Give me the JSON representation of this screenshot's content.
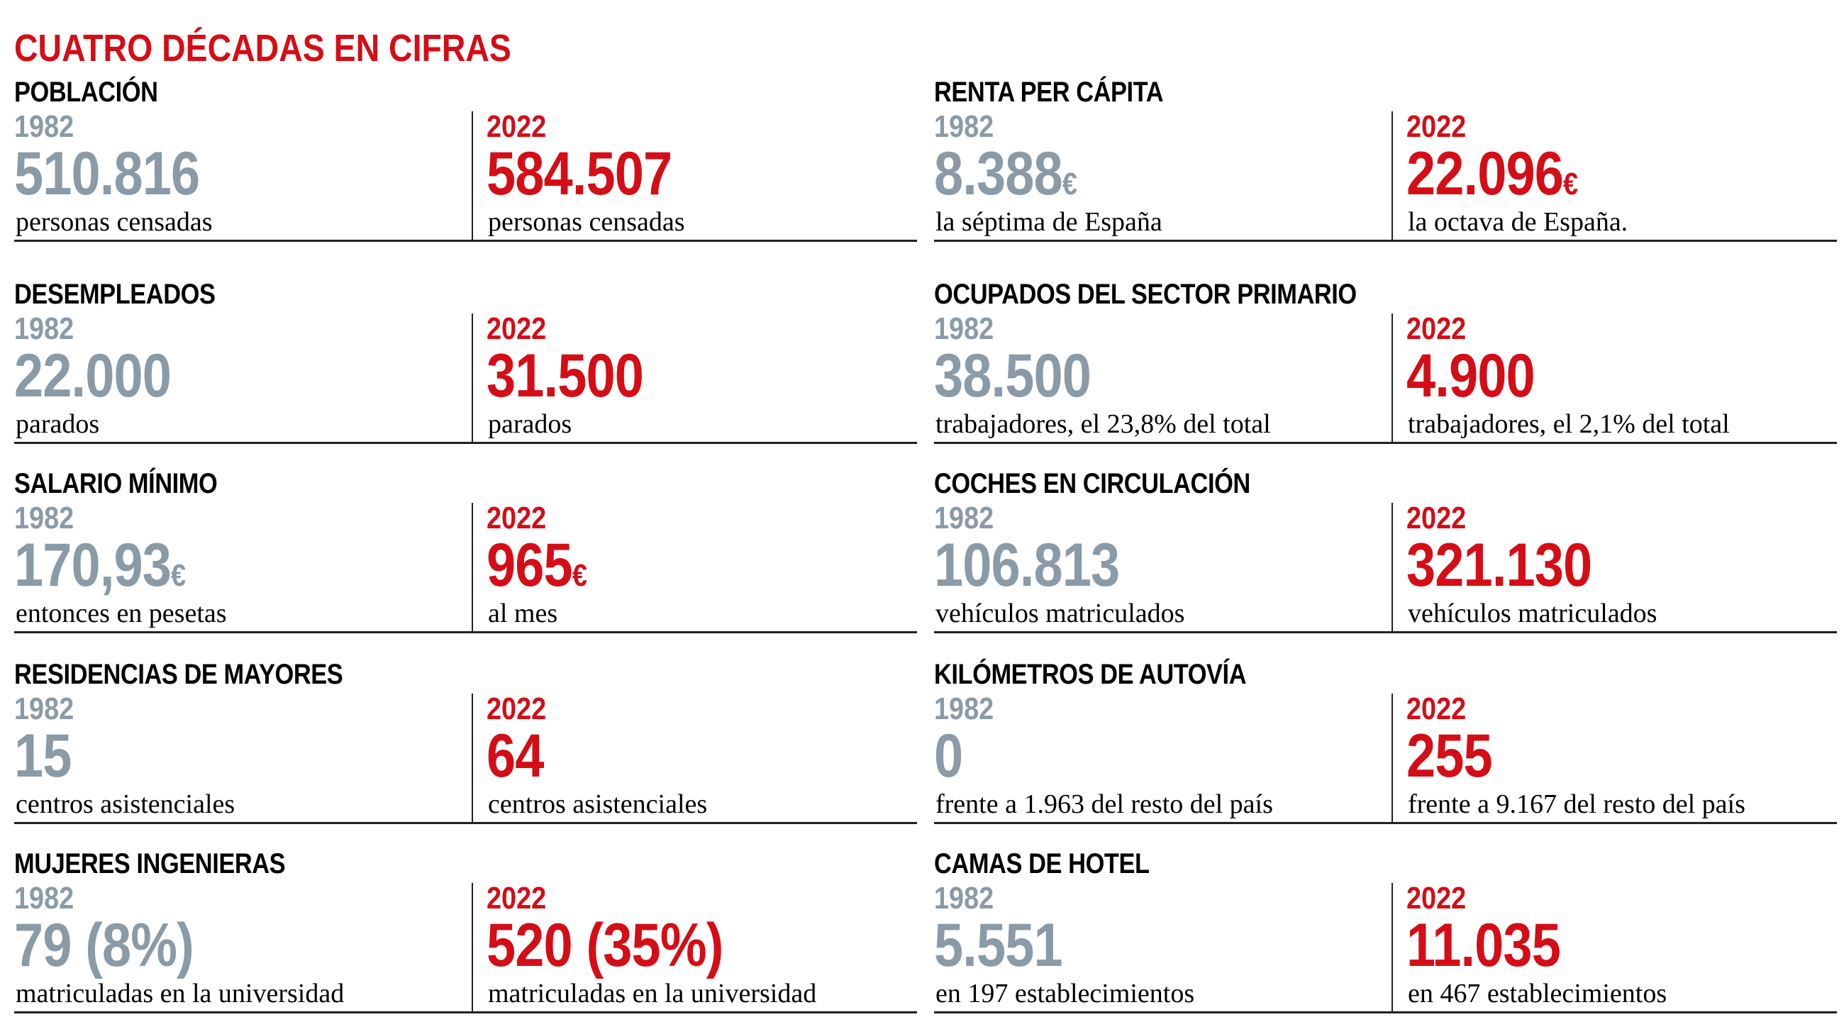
{
  "title": "CUATRO DÉCADAS EN CIFRAS",
  "colors": {
    "accent": "#d40d17",
    "past": "#8a9aa7"
  },
  "sections": [
    {
      "title": "POBLACIÓN",
      "before": {
        "year": "1982",
        "value": "510.816",
        "unit": "",
        "desc": "personas censadas"
      },
      "after": {
        "year": "2022",
        "value": "584.507",
        "unit": "",
        "desc": "personas censadas"
      }
    },
    {
      "title": "DESEMPLEADOS",
      "before": {
        "year": "1982",
        "value": "22.000",
        "unit": "",
        "desc": "parados"
      },
      "after": {
        "year": "2022",
        "value": "31.500",
        "unit": "",
        "desc": "parados"
      }
    },
    {
      "title": "SALARIO MÍNIMO",
      "before": {
        "year": "1982",
        "value": "170,93",
        "unit": "€",
        "desc": "entonces en pesetas"
      },
      "after": {
        "year": "2022",
        "value": "965",
        "unit": "€",
        "desc": "al mes"
      }
    },
    {
      "title": "RESIDENCIAS DE MAYORES",
      "before": {
        "year": "1982",
        "value": "15",
        "unit": "",
        "desc": "centros asistenciales"
      },
      "after": {
        "year": "2022",
        "value": "64",
        "unit": "",
        "desc": "centros asistenciales"
      }
    },
    {
      "title": "MUJERES INGENIERAS",
      "before": {
        "year": "1982",
        "value": "79 (8%)",
        "unit": "",
        "desc": "matriculadas en la universidad"
      },
      "after": {
        "year": "2022",
        "value": "520 (35%)",
        "unit": "",
        "desc": "matriculadas en la universidad"
      }
    },
    {
      "title": "RENTA PER CÁPITA",
      "before": {
        "year": "1982",
        "value": "8.388",
        "unit": "€",
        "desc": "la séptima de España"
      },
      "after": {
        "year": "2022",
        "value": "22.096",
        "unit": "€",
        "desc": "la octava de España."
      }
    },
    {
      "title": "OCUPADOS DEL SECTOR PRIMARIO",
      "before": {
        "year": "1982",
        "value": "38.500",
        "unit": "",
        "desc": "trabajadores, el 23,8% del total"
      },
      "after": {
        "year": "2022",
        "value": "4.900",
        "unit": "",
        "desc": "trabajadores, el 2,1% del total"
      }
    },
    {
      "title": "COCHES EN CIRCULACIÓN",
      "before": {
        "year": "1982",
        "value": "106.813",
        "unit": "",
        "desc": "vehículos matriculados"
      },
      "after": {
        "year": "2022",
        "value": "321.130",
        "unit": "",
        "desc": "vehículos matriculados"
      }
    },
    {
      "title": "KILÓMETROS DE AUTOVÍA",
      "before": {
        "year": "1982",
        "value": "0",
        "unit": "",
        "desc": "frente a 1.963 del resto del país"
      },
      "after": {
        "year": "2022",
        "value": "255",
        "unit": "",
        "desc": "frente a 9.167 del resto del país"
      }
    },
    {
      "title": "CAMAS DE HOTEL",
      "before": {
        "year": "1982",
        "value": "5.551",
        "unit": "",
        "desc": "en 197 establecimientos"
      },
      "after": {
        "year": "2022",
        "value": "11.035",
        "unit": "",
        "desc": "en 467 establecimientos"
      }
    }
  ]
}
